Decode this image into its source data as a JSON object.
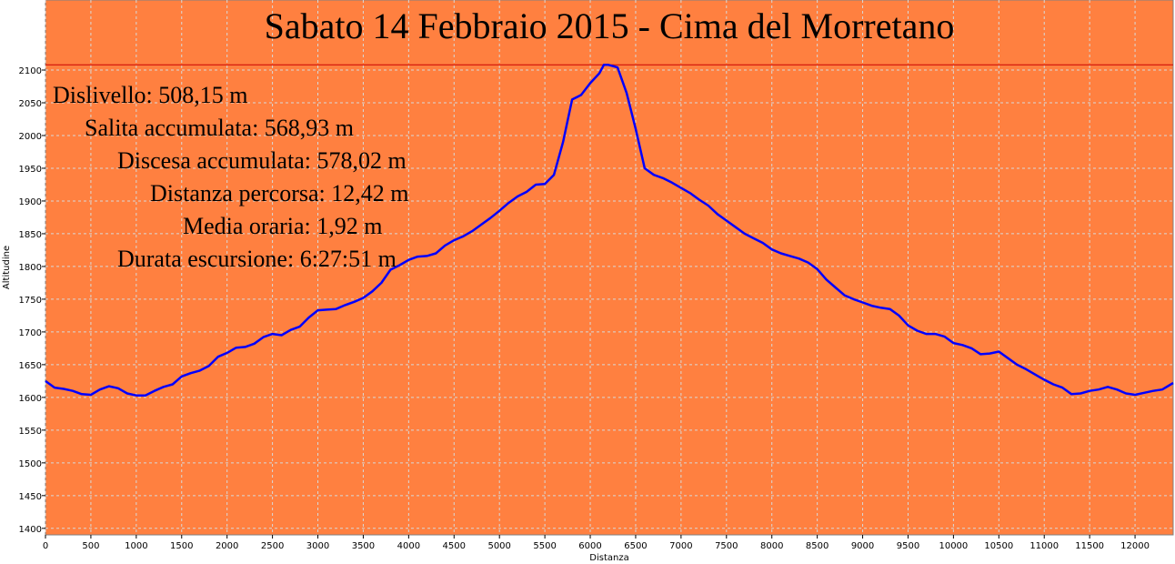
{
  "chart_data": {
    "type": "line",
    "title": "Sabato 14 Febbraio 2015 - Cima del Morretano",
    "xlabel": "Distanza",
    "ylabel": "Altitudine",
    "xlim": [
      0,
      12420
    ],
    "ylim": [
      1390,
      2207
    ],
    "x_ticks": [
      0,
      500,
      1000,
      1500,
      2000,
      2500,
      3000,
      3500,
      4000,
      4500,
      5000,
      5500,
      6000,
      6500,
      7000,
      7500,
      8000,
      8500,
      9000,
      9500,
      10000,
      10500,
      11000,
      11500,
      12000
    ],
    "y_ticks": [
      1400,
      1450,
      1500,
      1550,
      1600,
      1650,
      1700,
      1750,
      1800,
      1850,
      1900,
      1950,
      2000,
      2050,
      2100
    ],
    "grid": true,
    "background_color": "#ff8040",
    "line_color": "#0000ff",
    "reference_line": {
      "y": 2108,
      "color": "#cc0000"
    },
    "stats": [
      "Dislivello: 508,15 m",
      "Salita accumulata: 568,93 m",
      "Discesa accumulata: 578,02 m",
      "Distanza percorsa: 12,42 m",
      "Media oraria: 1,92 m",
      "Durata escursione: 6:27:51 m"
    ],
    "series": [
      {
        "values": [
          [
            0,
            1625
          ],
          [
            100,
            1615
          ],
          [
            200,
            1613
          ],
          [
            300,
            1610
          ],
          [
            400,
            1605
          ],
          [
            500,
            1604
          ],
          [
            600,
            1612
          ],
          [
            700,
            1617
          ],
          [
            800,
            1614
          ],
          [
            900,
            1606
          ],
          [
            1000,
            1603
          ],
          [
            1100,
            1603
          ],
          [
            1200,
            1610
          ],
          [
            1300,
            1616
          ],
          [
            1400,
            1620
          ],
          [
            1500,
            1632
          ],
          [
            1600,
            1637
          ],
          [
            1700,
            1641
          ],
          [
            1800,
            1648
          ],
          [
            1900,
            1662
          ],
          [
            2000,
            1668
          ],
          [
            2100,
            1676
          ],
          [
            2200,
            1677
          ],
          [
            2300,
            1682
          ],
          [
            2400,
            1692
          ],
          [
            2500,
            1697
          ],
          [
            2600,
            1695
          ],
          [
            2700,
            1703
          ],
          [
            2800,
            1708
          ],
          [
            2900,
            1722
          ],
          [
            3000,
            1733
          ],
          [
            3100,
            1734
          ],
          [
            3200,
            1735
          ],
          [
            3300,
            1741
          ],
          [
            3400,
            1746
          ],
          [
            3500,
            1752
          ],
          [
            3600,
            1762
          ],
          [
            3700,
            1775
          ],
          [
            3800,
            1795
          ],
          [
            3900,
            1802
          ],
          [
            4000,
            1810
          ],
          [
            4100,
            1815
          ],
          [
            4200,
            1816
          ],
          [
            4300,
            1820
          ],
          [
            4400,
            1832
          ],
          [
            4500,
            1840
          ],
          [
            4600,
            1846
          ],
          [
            4700,
            1854
          ],
          [
            4800,
            1864
          ],
          [
            4900,
            1874
          ],
          [
            5000,
            1885
          ],
          [
            5100,
            1897
          ],
          [
            5200,
            1907
          ],
          [
            5300,
            1914
          ],
          [
            5400,
            1925
          ],
          [
            5500,
            1926
          ],
          [
            5600,
            1940
          ],
          [
            5700,
            1990
          ],
          [
            5800,
            2055
          ],
          [
            5900,
            2062
          ],
          [
            6000,
            2080
          ],
          [
            6100,
            2095
          ],
          [
            6150,
            2108
          ],
          [
            6200,
            2108
          ],
          [
            6300,
            2104
          ],
          [
            6400,
            2065
          ],
          [
            6500,
            2010
          ],
          [
            6600,
            1950
          ],
          [
            6700,
            1940
          ],
          [
            6800,
            1935
          ],
          [
            6900,
            1928
          ],
          [
            7000,
            1920
          ],
          [
            7100,
            1912
          ],
          [
            7200,
            1902
          ],
          [
            7300,
            1893
          ],
          [
            7400,
            1880
          ],
          [
            7500,
            1870
          ],
          [
            7600,
            1860
          ],
          [
            7700,
            1850
          ],
          [
            7800,
            1843
          ],
          [
            7900,
            1836
          ],
          [
            8000,
            1826
          ],
          [
            8100,
            1820
          ],
          [
            8200,
            1816
          ],
          [
            8300,
            1812
          ],
          [
            8400,
            1806
          ],
          [
            8500,
            1796
          ],
          [
            8600,
            1780
          ],
          [
            8700,
            1768
          ],
          [
            8800,
            1756
          ],
          [
            8900,
            1750
          ],
          [
            9000,
            1745
          ],
          [
            9100,
            1740
          ],
          [
            9200,
            1737
          ],
          [
            9300,
            1735
          ],
          [
            9400,
            1725
          ],
          [
            9500,
            1710
          ],
          [
            9600,
            1702
          ],
          [
            9700,
            1697
          ],
          [
            9800,
            1697
          ],
          [
            9900,
            1693
          ],
          [
            10000,
            1683
          ],
          [
            10100,
            1680
          ],
          [
            10200,
            1675
          ],
          [
            10300,
            1666
          ],
          [
            10400,
            1667
          ],
          [
            10500,
            1670
          ],
          [
            10600,
            1660
          ],
          [
            10700,
            1650
          ],
          [
            10800,
            1643
          ],
          [
            10900,
            1635
          ],
          [
            11000,
            1627
          ],
          [
            11100,
            1620
          ],
          [
            11200,
            1615
          ],
          [
            11300,
            1605
          ],
          [
            11400,
            1606
          ],
          [
            11500,
            1610
          ],
          [
            11600,
            1612
          ],
          [
            11700,
            1616
          ],
          [
            11800,
            1612
          ],
          [
            11900,
            1606
          ],
          [
            12000,
            1604
          ],
          [
            12100,
            1607
          ],
          [
            12200,
            1610
          ],
          [
            12300,
            1612
          ],
          [
            12420,
            1622
          ]
        ]
      }
    ]
  }
}
